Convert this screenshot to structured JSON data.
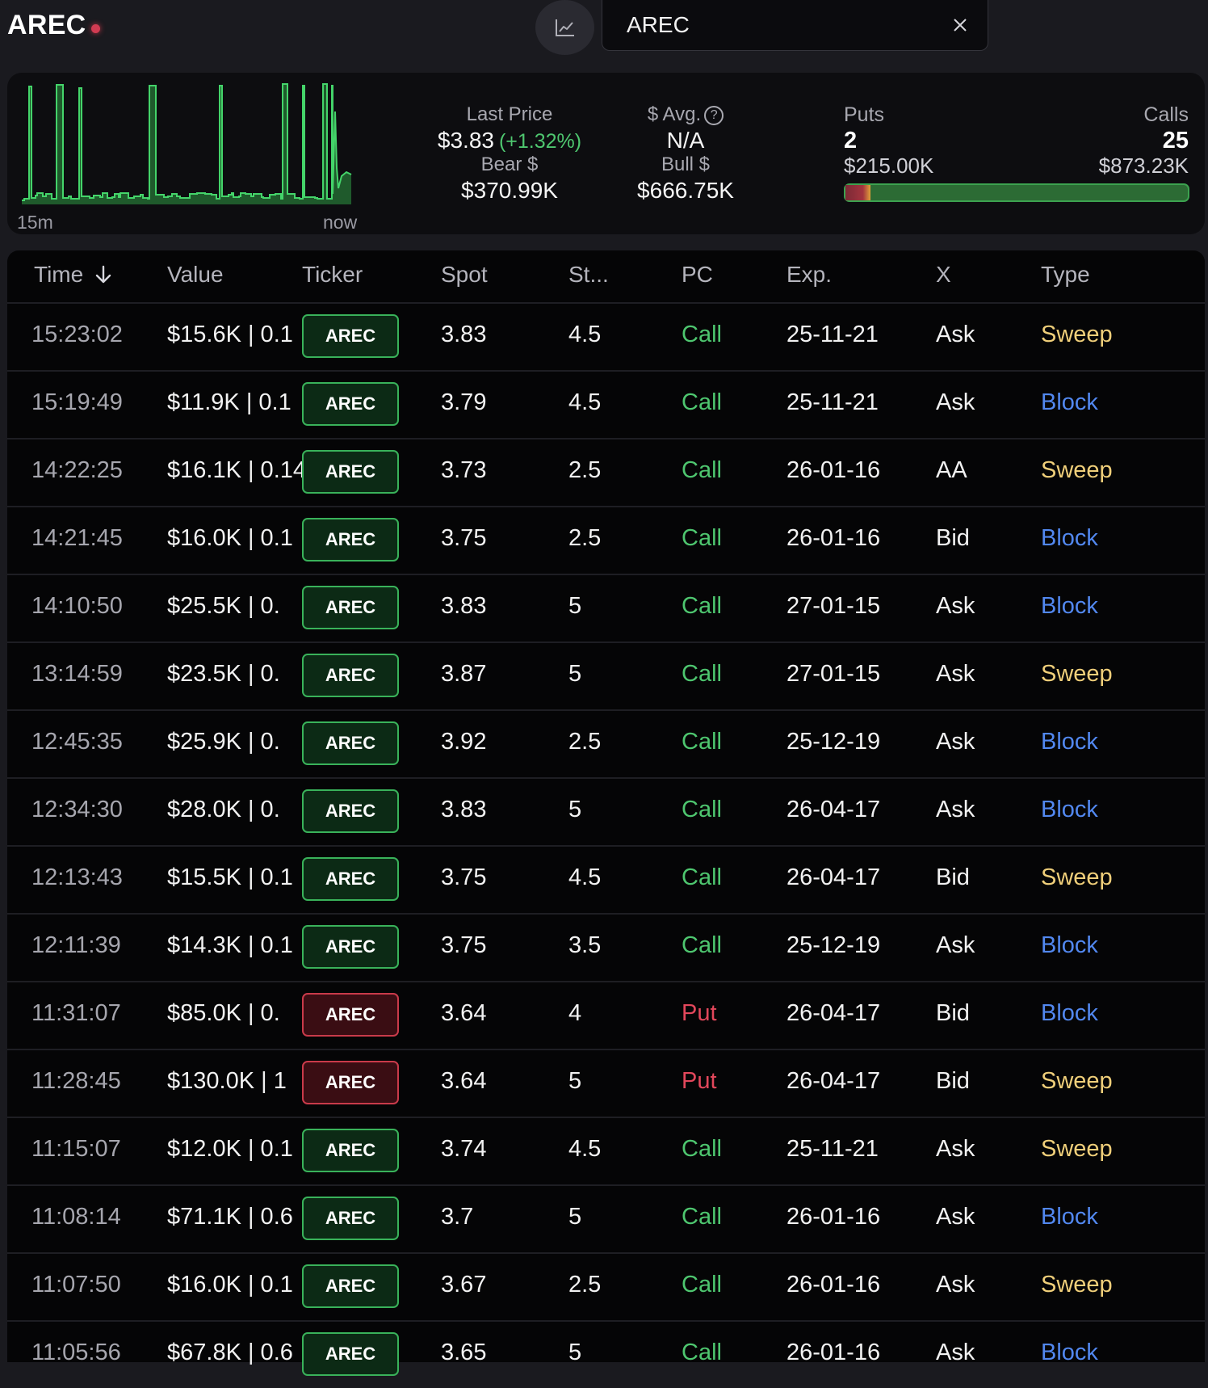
{
  "header": {
    "title": "AREC",
    "search_value": "AREC",
    "chart_icon": "line-chart-icon",
    "clear_icon": "close-icon"
  },
  "summary": {
    "spark_start_label": "15m",
    "spark_end_label": "now",
    "last_price_label": "Last Price",
    "last_price": "$3.83",
    "last_change": "(+1.32%)",
    "avg_label": "$ Avg.",
    "avg_value": "N/A",
    "bear_label": "Bear $",
    "bear_value": "$370.99K",
    "bull_label": "Bull $",
    "bull_value": "$666.75K",
    "puts_label": "Puts",
    "puts_count": "2",
    "puts_value": "$215.00K",
    "calls_label": "Calls",
    "calls_count": "25",
    "calls_value": "$873.23K",
    "puts_share": 0.0738
  },
  "table": {
    "columns": [
      "Time",
      "Value",
      "Ticker",
      "Spot",
      "St...",
      "PC",
      "Exp.",
      "X",
      "Type"
    ],
    "rows": [
      {
        "time": "15:23:02",
        "value": "$15.6K | 0.1",
        "ticker": "AREC",
        "spot": "3.83",
        "strike": "4.5",
        "pc": "Call",
        "exp": "25-11-21",
        "x": "Ask",
        "type": "Sweep"
      },
      {
        "time": "15:19:49",
        "value": "$11.9K | 0.1",
        "ticker": "AREC",
        "spot": "3.79",
        "strike": "4.5",
        "pc": "Call",
        "exp": "25-11-21",
        "x": "Ask",
        "type": "Block"
      },
      {
        "time": "14:22:25",
        "value": "$16.1K | 0.14",
        "ticker": "AREC",
        "spot": "3.73",
        "strike": "2.5",
        "pc": "Call",
        "exp": "26-01-16",
        "x": "AA",
        "type": "Sweep"
      },
      {
        "time": "14:21:45",
        "value": "$16.0K | 0.1",
        "ticker": "AREC",
        "spot": "3.75",
        "strike": "2.5",
        "pc": "Call",
        "exp": "26-01-16",
        "x": "Bid",
        "type": "Block"
      },
      {
        "time": "14:10:50",
        "value": "$25.5K | 0.",
        "ticker": "AREC",
        "spot": "3.83",
        "strike": "5",
        "pc": "Call",
        "exp": "27-01-15",
        "x": "Ask",
        "type": "Block"
      },
      {
        "time": "13:14:59",
        "value": "$23.5K | 0.",
        "ticker": "AREC",
        "spot": "3.87",
        "strike": "5",
        "pc": "Call",
        "exp": "27-01-15",
        "x": "Ask",
        "type": "Sweep"
      },
      {
        "time": "12:45:35",
        "value": "$25.9K | 0.",
        "ticker": "AREC",
        "spot": "3.92",
        "strike": "2.5",
        "pc": "Call",
        "exp": "25-12-19",
        "x": "Ask",
        "type": "Block"
      },
      {
        "time": "12:34:30",
        "value": "$28.0K | 0.",
        "ticker": "AREC",
        "spot": "3.83",
        "strike": "5",
        "pc": "Call",
        "exp": "26-04-17",
        "x": "Ask",
        "type": "Block"
      },
      {
        "time": "12:13:43",
        "value": "$15.5K | 0.1",
        "ticker": "AREC",
        "spot": "3.75",
        "strike": "4.5",
        "pc": "Call",
        "exp": "26-04-17",
        "x": "Bid",
        "type": "Sweep"
      },
      {
        "time": "12:11:39",
        "value": "$14.3K | 0.1",
        "ticker": "AREC",
        "spot": "3.75",
        "strike": "3.5",
        "pc": "Call",
        "exp": "25-12-19",
        "x": "Ask",
        "type": "Block"
      },
      {
        "time": "11:31:07",
        "value": "$85.0K | 0.",
        "ticker": "AREC",
        "spot": "3.64",
        "strike": "4",
        "pc": "Put",
        "exp": "26-04-17",
        "x": "Bid",
        "type": "Block"
      },
      {
        "time": "11:28:45",
        "value": "$130.0K | 1",
        "ticker": "AREC",
        "spot": "3.64",
        "strike": "5",
        "pc": "Put",
        "exp": "26-04-17",
        "x": "Bid",
        "type": "Sweep"
      },
      {
        "time": "11:15:07",
        "value": "$12.0K | 0.1",
        "ticker": "AREC",
        "spot": "3.74",
        "strike": "4.5",
        "pc": "Call",
        "exp": "25-11-21",
        "x": "Ask",
        "type": "Sweep"
      },
      {
        "time": "11:08:14",
        "value": "$71.1K | 0.6",
        "ticker": "AREC",
        "spot": "3.7",
        "strike": "5",
        "pc": "Call",
        "exp": "26-01-16",
        "x": "Ask",
        "type": "Block"
      },
      {
        "time": "11:07:50",
        "value": "$16.0K | 0.1",
        "ticker": "AREC",
        "spot": "3.67",
        "strike": "2.5",
        "pc": "Call",
        "exp": "26-01-16",
        "x": "Ask",
        "type": "Sweep"
      },
      {
        "time": "11:05:56",
        "value": "$67.8K | 0.6",
        "ticker": "AREC",
        "spot": "3.65",
        "strike": "5",
        "pc": "Call",
        "exp": "26-01-16",
        "x": "Ask",
        "type": "Block"
      }
    ]
  },
  "colors": {
    "call": "#4ec66f",
    "put": "#e2475b",
    "sweep": "#f0cf7a",
    "block": "#5288f0"
  }
}
